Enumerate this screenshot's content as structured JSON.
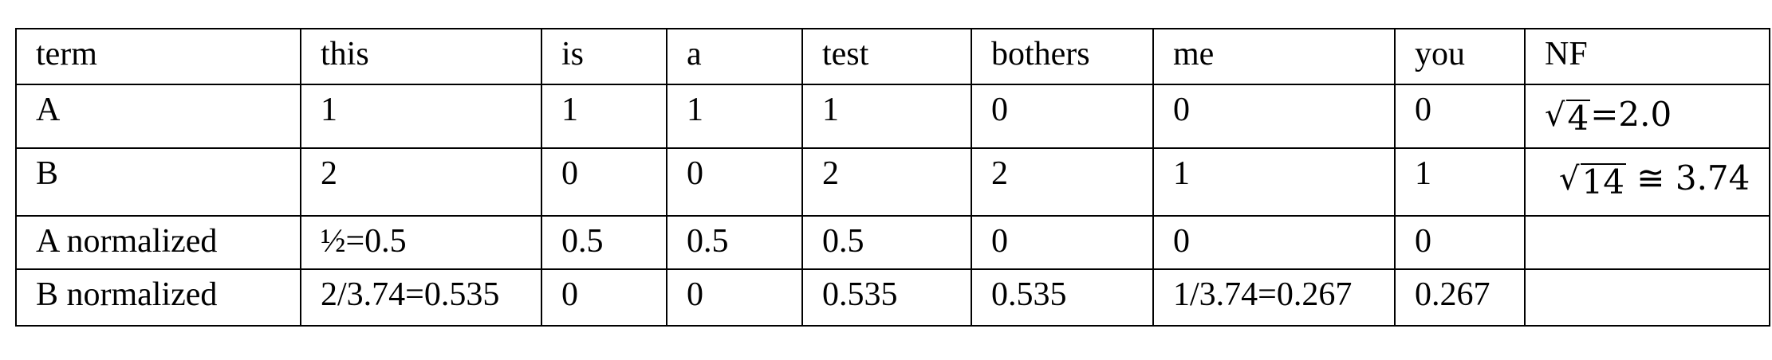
{
  "table": {
    "header": [
      "term",
      "this",
      "is",
      "a",
      "test",
      "bothers",
      "me",
      "you",
      "NF"
    ],
    "rows": [
      {
        "label": "A",
        "cells": [
          "1",
          "1",
          "1",
          "1",
          "0",
          "0",
          "0"
        ],
        "nf": {
          "radicand": "4",
          "rest": "=2.0"
        }
      },
      {
        "label": "B",
        "cells": [
          "2",
          "0",
          "0",
          "2",
          "2",
          "1",
          "1"
        ],
        "nf": {
          "radicand": "14",
          "rest": " ≅ 3.74"
        }
      },
      {
        "label": "A normalized",
        "cells": [
          "½=0.5",
          "0.5",
          "0.5",
          "0.5",
          "0",
          "0",
          "0"
        ],
        "nf": ""
      },
      {
        "label": "B normalized",
        "cells": [
          "2/3.74=0.535",
          "0",
          "0",
          "0.535",
          "0.535",
          "1/3.74=0.267",
          "0.267"
        ],
        "nf": ""
      }
    ]
  }
}
